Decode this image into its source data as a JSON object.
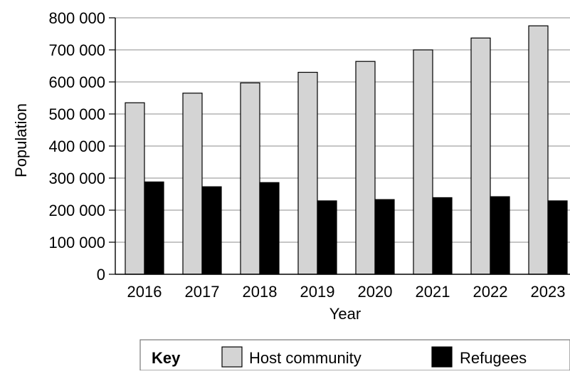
{
  "chart_data": {
    "type": "bar",
    "title": "",
    "xlabel": "Year",
    "ylabel": "Population",
    "categories": [
      "2016",
      "2017",
      "2018",
      "2019",
      "2020",
      "2021",
      "2022",
      "2023"
    ],
    "series": [
      {
        "name": "Host community",
        "color": "#d4d4d4",
        "values": [
          535000,
          565000,
          597000,
          630000,
          664000,
          700000,
          737000,
          775000
        ]
      },
      {
        "name": "Refugees",
        "color": "#000000",
        "values": [
          288000,
          273000,
          286000,
          229000,
          233000,
          239000,
          242000,
          229000
        ]
      }
    ],
    "ylim": [
      0,
      800000
    ],
    "yticks": [
      0,
      100000,
      200000,
      300000,
      400000,
      500000,
      600000,
      700000,
      800000
    ],
    "ytick_labels": [
      "0",
      "100 000",
      "200 000",
      "300 000",
      "400 000",
      "500 000",
      "600 000",
      "700 000",
      "800 000"
    ],
    "grid": true,
    "legend": {
      "title": "Key",
      "placement": "bottom-right"
    }
  }
}
